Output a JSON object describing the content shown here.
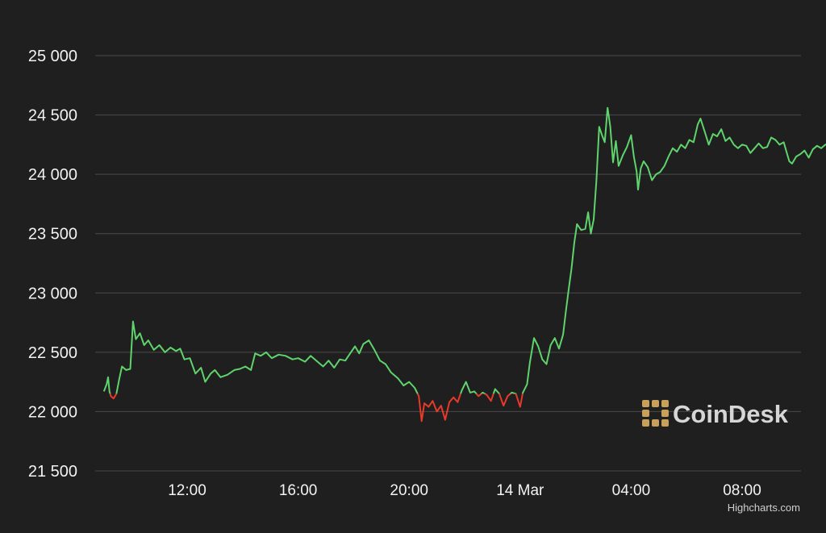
{
  "chart_data": {
    "type": "line",
    "title": "",
    "xlabel": "",
    "ylabel": "",
    "ylim": [
      21500,
      25000
    ],
    "y_ticks": [
      21500,
      22000,
      22500,
      23000,
      23500,
      24000,
      24500,
      25000
    ],
    "y_tick_labels": [
      "21 500",
      "22 000",
      "22 500",
      "23 000",
      "23 500",
      "24 000",
      "24 500",
      "25 000"
    ],
    "x_ticks": [
      12,
      16,
      20,
      24,
      28,
      32
    ],
    "x_tick_labels": [
      "12:00",
      "16:00",
      "20:00",
      "14 Mar",
      "04:00",
      "08:00"
    ],
    "x_unit": "hours since 13 Mar 00:00",
    "xlim": [
      8.3,
      34.2
    ],
    "grid": true,
    "threshold": 22150,
    "colors": {
      "up": "#5fd36c",
      "down": "#e8392b",
      "grid": "#4a4a4a",
      "background": "#1f1f1f"
    },
    "series": [
      {
        "values": [
          [
            9.0,
            22170
          ],
          [
            9.1,
            22230
          ],
          [
            9.15,
            22290
          ],
          [
            9.2,
            22170
          ],
          [
            9.25,
            22130
          ],
          [
            9.35,
            22110
          ],
          [
            9.45,
            22150
          ],
          [
            9.55,
            22270
          ],
          [
            9.65,
            22380
          ],
          [
            9.8,
            22350
          ],
          [
            9.95,
            22360
          ],
          [
            10.05,
            22760
          ],
          [
            10.15,
            22610
          ],
          [
            10.3,
            22660
          ],
          [
            10.45,
            22560
          ],
          [
            10.6,
            22600
          ],
          [
            10.8,
            22520
          ],
          [
            11.0,
            22560
          ],
          [
            11.2,
            22500
          ],
          [
            11.4,
            22540
          ],
          [
            11.6,
            22510
          ],
          [
            11.75,
            22530
          ],
          [
            11.9,
            22440
          ],
          [
            12.1,
            22450
          ],
          [
            12.3,
            22320
          ],
          [
            12.5,
            22370
          ],
          [
            12.65,
            22250
          ],
          [
            12.85,
            22320
          ],
          [
            13.0,
            22350
          ],
          [
            13.2,
            22290
          ],
          [
            13.45,
            22310
          ],
          [
            13.7,
            22350
          ],
          [
            13.9,
            22360
          ],
          [
            14.1,
            22380
          ],
          [
            14.3,
            22350
          ],
          [
            14.45,
            22490
          ],
          [
            14.65,
            22470
          ],
          [
            14.85,
            22500
          ],
          [
            15.05,
            22450
          ],
          [
            15.3,
            22480
          ],
          [
            15.55,
            22470
          ],
          [
            15.8,
            22440
          ],
          [
            16.0,
            22450
          ],
          [
            16.25,
            22420
          ],
          [
            16.45,
            22470
          ],
          [
            16.7,
            22420
          ],
          [
            16.9,
            22380
          ],
          [
            17.1,
            22430
          ],
          [
            17.3,
            22370
          ],
          [
            17.5,
            22440
          ],
          [
            17.7,
            22430
          ],
          [
            17.9,
            22500
          ],
          [
            18.05,
            22550
          ],
          [
            18.2,
            22490
          ],
          [
            18.35,
            22570
          ],
          [
            18.55,
            22600
          ],
          [
            18.75,
            22520
          ],
          [
            18.95,
            22430
          ],
          [
            19.15,
            22400
          ],
          [
            19.35,
            22330
          ],
          [
            19.6,
            22280
          ],
          [
            19.8,
            22220
          ],
          [
            20.0,
            22250
          ],
          [
            20.2,
            22200
          ],
          [
            20.35,
            22130
          ],
          [
            20.45,
            21920
          ],
          [
            20.55,
            22070
          ],
          [
            20.7,
            22040
          ],
          [
            20.85,
            22090
          ],
          [
            21.0,
            22000
          ],
          [
            21.15,
            22050
          ],
          [
            21.3,
            21930
          ],
          [
            21.45,
            22080
          ],
          [
            21.6,
            22120
          ],
          [
            21.75,
            22080
          ],
          [
            21.9,
            22180
          ],
          [
            22.05,
            22250
          ],
          [
            22.2,
            22160
          ],
          [
            22.35,
            22170
          ],
          [
            22.5,
            22130
          ],
          [
            22.65,
            22160
          ],
          [
            22.8,
            22140
          ],
          [
            22.95,
            22090
          ],
          [
            23.1,
            22190
          ],
          [
            23.25,
            22150
          ],
          [
            23.4,
            22050
          ],
          [
            23.55,
            22130
          ],
          [
            23.7,
            22160
          ],
          [
            23.85,
            22150
          ],
          [
            24.0,
            22040
          ],
          [
            24.1,
            22160
          ],
          [
            24.25,
            22230
          ],
          [
            24.35,
            22410
          ],
          [
            24.5,
            22620
          ],
          [
            24.65,
            22550
          ],
          [
            24.8,
            22440
          ],
          [
            24.95,
            22400
          ],
          [
            25.1,
            22560
          ],
          [
            25.25,
            22620
          ],
          [
            25.4,
            22530
          ],
          [
            25.55,
            22650
          ],
          [
            25.65,
            22850
          ],
          [
            25.75,
            23030
          ],
          [
            25.85,
            23200
          ],
          [
            25.95,
            23420
          ],
          [
            26.05,
            23580
          ],
          [
            26.2,
            23530
          ],
          [
            26.35,
            23540
          ],
          [
            26.45,
            23680
          ],
          [
            26.55,
            23500
          ],
          [
            26.65,
            23620
          ],
          [
            26.75,
            23950
          ],
          [
            26.85,
            24400
          ],
          [
            26.95,
            24330
          ],
          [
            27.05,
            24270
          ],
          [
            27.15,
            24560
          ],
          [
            27.25,
            24400
          ],
          [
            27.35,
            24100
          ],
          [
            27.45,
            24280
          ],
          [
            27.55,
            24070
          ],
          [
            27.7,
            24160
          ],
          [
            27.85,
            24230
          ],
          [
            28.0,
            24330
          ],
          [
            28.1,
            24150
          ],
          [
            28.2,
            24020
          ],
          [
            28.25,
            23870
          ],
          [
            28.35,
            24050
          ],
          [
            28.45,
            24110
          ],
          [
            28.6,
            24060
          ],
          [
            28.75,
            23950
          ],
          [
            28.9,
            24000
          ],
          [
            29.05,
            24020
          ],
          [
            29.2,
            24070
          ],
          [
            29.35,
            24150
          ],
          [
            29.5,
            24220
          ],
          [
            29.65,
            24190
          ],
          [
            29.8,
            24250
          ],
          [
            29.95,
            24220
          ],
          [
            30.1,
            24290
          ],
          [
            30.25,
            24270
          ],
          [
            30.4,
            24420
          ],
          [
            30.5,
            24470
          ],
          [
            30.65,
            24360
          ],
          [
            30.8,
            24250
          ],
          [
            30.95,
            24340
          ],
          [
            31.1,
            24320
          ],
          [
            31.25,
            24380
          ],
          [
            31.4,
            24280
          ],
          [
            31.55,
            24310
          ],
          [
            31.7,
            24250
          ],
          [
            31.85,
            24220
          ],
          [
            32.0,
            24250
          ],
          [
            32.15,
            24240
          ],
          [
            32.3,
            24180
          ],
          [
            32.45,
            24220
          ],
          [
            32.6,
            24260
          ],
          [
            32.75,
            24220
          ],
          [
            32.9,
            24230
          ],
          [
            33.05,
            24310
          ],
          [
            33.2,
            24290
          ],
          [
            33.35,
            24250
          ],
          [
            33.5,
            24270
          ],
          [
            33.6,
            24190
          ],
          [
            33.7,
            24110
          ],
          [
            33.8,
            24090
          ],
          [
            33.95,
            24150
          ],
          [
            34.1,
            24170
          ],
          [
            34.25,
            24200
          ],
          [
            34.4,
            24140
          ],
          [
            34.55,
            24210
          ],
          [
            34.7,
            24240
          ],
          [
            34.85,
            24220
          ],
          [
            35.0,
            24250
          ],
          [
            35.15,
            24260
          ],
          [
            35.25,
            24300
          ]
        ]
      }
    ]
  },
  "watermark": {
    "text": "CoinDesk",
    "icon": "coindesk-logo-icon",
    "color": "#c9a05a"
  },
  "credit": "Highcharts.com"
}
